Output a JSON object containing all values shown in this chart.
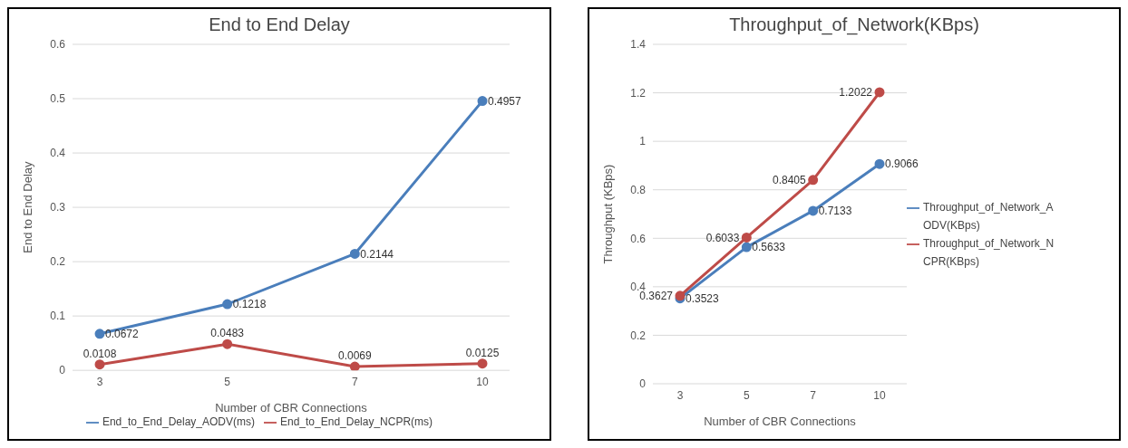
{
  "chart_data": [
    {
      "type": "line",
      "title": "End to End Delay",
      "xlabel": "Number of CBR Connections",
      "ylabel": "End to End Delay",
      "categories": [
        "3",
        "5",
        "7",
        "10"
      ],
      "ylim": [
        0,
        0.6
      ],
      "yticks": [
        0,
        0.1,
        0.2,
        0.3,
        0.4,
        0.5,
        0.6
      ],
      "grid": "y",
      "legend": "bottom",
      "marker": "circle",
      "data_labels": true,
      "series": [
        {
          "name": "End_to_End_Delay_AODV(ms)",
          "color": "#4a7ebb",
          "values": [
            0.0672,
            0.1218,
            0.2144,
            0.4957
          ]
        },
        {
          "name": "End_to_End_Delay_NCPR(ms)",
          "color": "#be4b48",
          "values": [
            0.0108,
            0.0483,
            0.0069,
            0.0125
          ]
        }
      ]
    },
    {
      "type": "line",
      "title": "Throughput_of_Network(KBps)",
      "xlabel": "Number of CBR Connections",
      "ylabel": "Throughput (KBps)",
      "categories": [
        "3",
        "5",
        "7",
        "10"
      ],
      "ylim": [
        0,
        1.4
      ],
      "yticks": [
        0,
        0.2,
        0.4,
        0.6,
        0.8,
        1,
        1.2,
        1.4
      ],
      "grid": "y",
      "legend": "right",
      "marker": "circle",
      "data_labels": true,
      "series": [
        {
          "name": "Throughput_of_Network_AODV(KBps)",
          "color": "#4a7ebb",
          "values": [
            0.3523,
            0.5633,
            0.7133,
            0.9066
          ]
        },
        {
          "name": "Throughput_of_Network_NCPR(KBps)",
          "color": "#be4b48",
          "values": [
            0.3627,
            0.6033,
            0.8405,
            1.2022
          ]
        }
      ]
    }
  ]
}
